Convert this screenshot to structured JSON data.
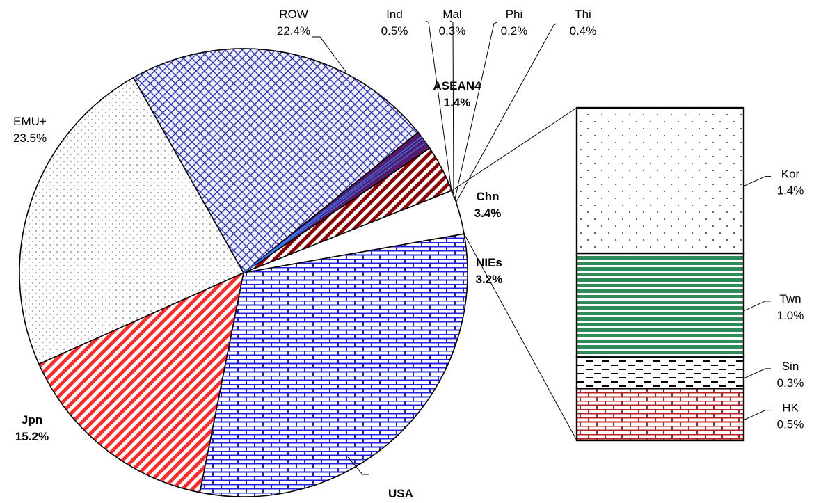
{
  "chart_data": [
    {
      "type": "pie",
      "slices": [
        {
          "name": "USA",
          "value": 30.9,
          "value_label": "30.9%",
          "bold": true,
          "color": "#1f1fe0",
          "pattern": "brick"
        },
        {
          "name": "Jpn",
          "value": 15.2,
          "value_label": "15.2%",
          "bold": true,
          "color": "#ff2a2a",
          "pattern": "diagonal"
        },
        {
          "name": "EMU+",
          "value": 23.5,
          "value_label": "23.5%",
          "bold": false,
          "color": "#888888",
          "pattern": "dots"
        },
        {
          "name": "ROW",
          "value": 22.4,
          "value_label": "22.4%",
          "bold": false,
          "color": "#2b2fb0",
          "pattern": "crosshatch"
        },
        {
          "name": "ASEAN4",
          "value": 1.4,
          "value_label": "1.4%",
          "bold": true,
          "color": "#5a1a6a",
          "pattern": "solid"
        },
        {
          "name": "Chn",
          "value": 3.4,
          "value_label": "3.4%",
          "bold": true,
          "color": "#8b0000",
          "pattern": "diagonal"
        },
        {
          "name": "NIEs",
          "value": 3.2,
          "value_label": "3.2%",
          "bold": true,
          "color": "#ffffff",
          "pattern": "none"
        }
      ],
      "asean4_breakdown": [
        {
          "name": "Ind",
          "value": 0.5,
          "value_label": "0.5%"
        },
        {
          "name": "Mal",
          "value": 0.3,
          "value_label": "0.3%"
        },
        {
          "name": "Phi",
          "value": 0.2,
          "value_label": "0.2%"
        },
        {
          "name": "Thi",
          "value": 0.4,
          "value_label": "0.4%"
        }
      ]
    },
    {
      "type": "bar",
      "stacked": true,
      "segments": [
        {
          "name": "Kor",
          "value": 1.4,
          "value_label": "1.4%",
          "color": "#888888",
          "pattern": "dots"
        },
        {
          "name": "Twn",
          "value": 1.0,
          "value_label": "1.0%",
          "color": "#2e8b57",
          "pattern": "horizontal"
        },
        {
          "name": "Sin",
          "value": 0.3,
          "value_label": "0.3%",
          "color": "#000000",
          "pattern": "dashes"
        },
        {
          "name": "HK",
          "value": 0.5,
          "value_label": "0.5%",
          "color": "#b22222",
          "pattern": "brick"
        }
      ]
    }
  ]
}
